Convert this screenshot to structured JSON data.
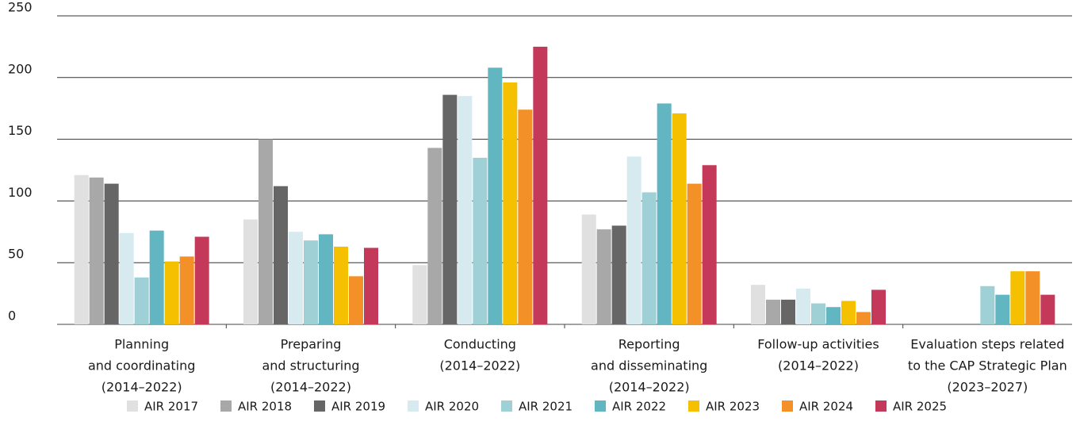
{
  "chart_data": {
    "type": "bar",
    "categories": [
      [
        "Planning",
        "and coordinating",
        "(2014–2022)"
      ],
      [
        "Preparing",
        "and structuring",
        "(2014–2022)"
      ],
      [
        "Conducting",
        "(2014–2022)"
      ],
      [
        "Reporting",
        "and disseminating",
        "(2014–2022)"
      ],
      [
        "Follow-up activities",
        "(2014–2022)"
      ],
      [
        "Evaluation steps related",
        "to the CAP Strategic Plan",
        "(2023–2027)"
      ]
    ],
    "series": [
      {
        "name": "AIR 2017",
        "color": "#e0e0e0",
        "values": [
          121,
          85,
          48,
          89,
          32,
          null
        ]
      },
      {
        "name": "AIR 2018",
        "color": "#a8a8a8",
        "values": [
          119,
          150,
          143,
          77,
          20,
          null
        ]
      },
      {
        "name": "AIR 2019",
        "color": "#666666",
        "values": [
          114,
          112,
          186,
          80,
          20,
          null
        ]
      },
      {
        "name": "AIR 2020",
        "color": "#d6eaf0",
        "values": [
          74,
          75,
          185,
          136,
          29,
          null
        ]
      },
      {
        "name": "AIR 2021",
        "color": "#9fd0d6",
        "values": [
          38,
          68,
          135,
          107,
          17,
          31
        ]
      },
      {
        "name": "AIR 2022",
        "color": "#62b6c2",
        "values": [
          76,
          73,
          208,
          179,
          14,
          24
        ]
      },
      {
        "name": "AIR 2023",
        "color": "#f5c000",
        "values": [
          51,
          63,
          196,
          171,
          19,
          43
        ]
      },
      {
        "name": "AIR 2024",
        "color": "#f39128",
        "values": [
          55,
          39,
          174,
          114,
          10,
          43
        ]
      },
      {
        "name": "AIR 2025",
        "color": "#c4385a",
        "values": [
          71,
          62,
          225,
          129,
          28,
          24
        ]
      }
    ],
    "ylim": [
      0,
      250
    ],
    "yticks": [
      0,
      50,
      100,
      150,
      200,
      250
    ],
    "grid": true,
    "legend": "bottom"
  }
}
